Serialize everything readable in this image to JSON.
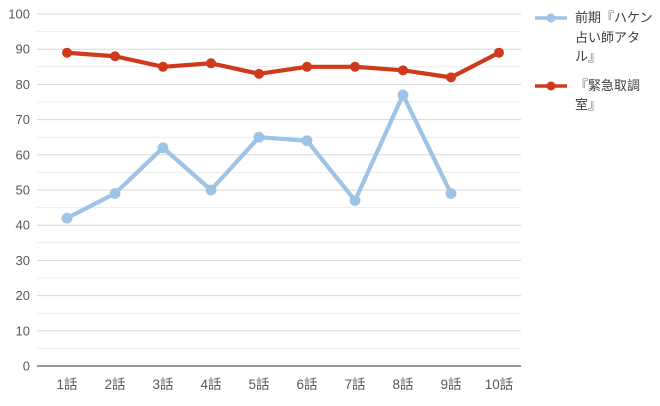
{
  "chart_data": {
    "type": "line",
    "title": "",
    "xlabel": "",
    "ylabel": "",
    "categories": [
      "1話",
      "2話",
      "3話",
      "4話",
      "5話",
      "6話",
      "7話",
      "8話",
      "9話",
      "10話"
    ],
    "series": [
      {
        "name": "前期『ハケン占い師アタル』",
        "color": "#9dc3e6",
        "values": [
          42,
          49,
          62,
          50,
          65,
          64,
          47,
          77,
          49,
          null
        ]
      },
      {
        "name": "『緊急取調室』",
        "color": "#ce3a1b",
        "values": [
          89,
          88,
          85,
          86,
          83,
          85,
          85,
          84,
          82,
          89
        ]
      }
    ],
    "ylim": [
      0,
      100
    ],
    "y_major_step": 10,
    "y_minor_step": 5,
    "y_tick_labels": [
      "0",
      "10",
      "20",
      "30",
      "40",
      "50",
      "60",
      "70",
      "80",
      "90",
      "100"
    ],
    "grid": true,
    "legend_position": "right"
  },
  "colors": {
    "major_grid": "#d7d7d7",
    "minor_grid": "#ececec",
    "axis_line": "#999999",
    "tick_label": "#595959",
    "legend_text": "#3d3d3d",
    "background": "#ffffff"
  }
}
